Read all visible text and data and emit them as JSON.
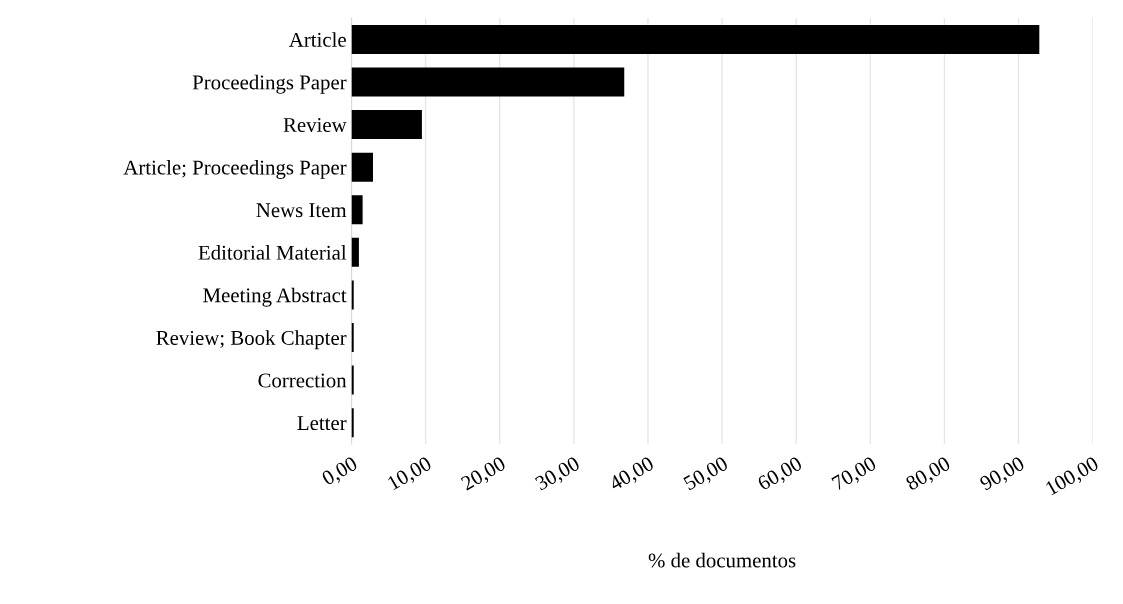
{
  "chart_data": {
    "type": "bar",
    "orientation": "horizontal",
    "xlabel": "% de documentos",
    "categories": [
      "Article",
      "Proceedings Paper",
      "Review",
      "Article; Proceedings Paper",
      "News Item",
      "Editorial Material",
      "Meeting Abstract",
      "Review; Book Chapter",
      "Correction",
      "Letter"
    ],
    "values": [
      92.8,
      36.8,
      9.5,
      2.9,
      1.5,
      1.0,
      0.3,
      0.3,
      0.3,
      0.3
    ],
    "color": "#000000",
    "xlim": [
      0,
      100
    ],
    "xticks": [
      {
        "value": 0,
        "label": "0,00"
      },
      {
        "value": 10,
        "label": "10,00"
      },
      {
        "value": 20,
        "label": "20,00"
      },
      {
        "value": 30,
        "label": "30,00"
      },
      {
        "value": 40,
        "label": "40,00"
      },
      {
        "value": 50,
        "label": "50,00"
      },
      {
        "value": 60,
        "label": "60,00"
      },
      {
        "value": 70,
        "label": "70,00"
      },
      {
        "value": 80,
        "label": "80,00"
      },
      {
        "value": 90,
        "label": "90,00"
      },
      {
        "value": 100,
        "label": "100,00"
      }
    ],
    "grid": "x"
  }
}
